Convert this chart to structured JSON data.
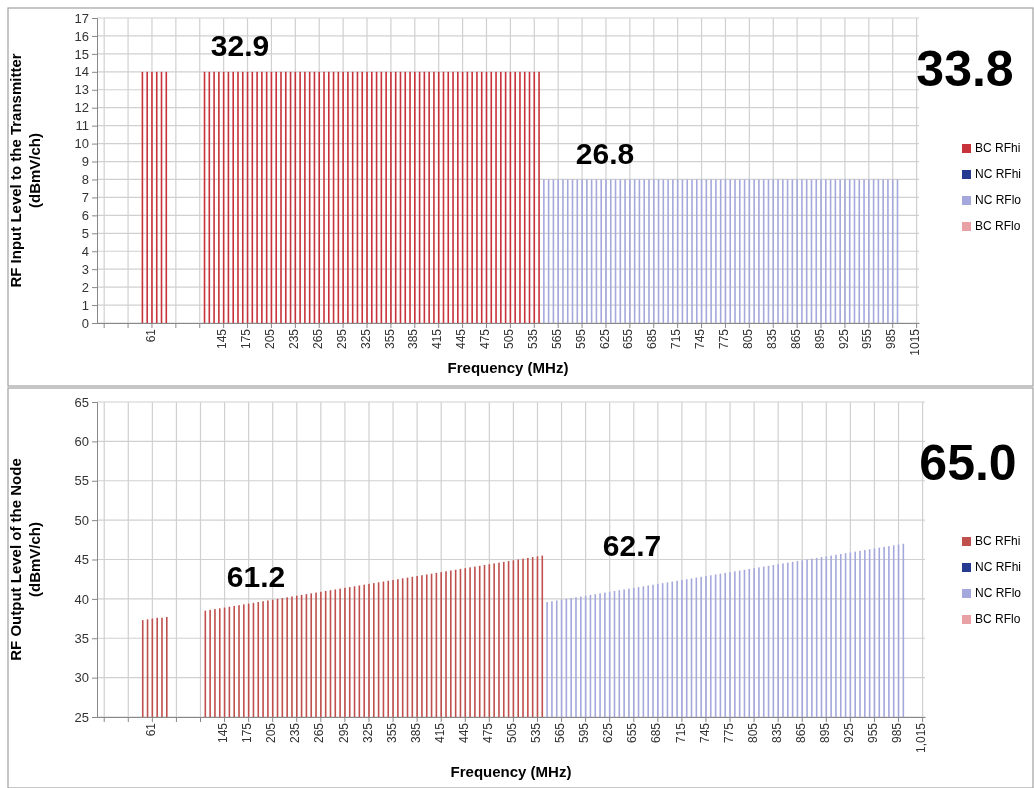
{
  "chart_data": [
    {
      "type": "bar",
      "xlabel": "Frequency (MHz)",
      "ylabel": "RF Input Level to the Transmitter\n(dBmV/ch)",
      "categories": [
        null,
        null,
        null,
        null,
        null,
        null,
        null,
        null,
        null,
        null,
        null,
        "61",
        null,
        null,
        null,
        null,
        null,
        null,
        null,
        null,
        null,
        null,
        null,
        null,
        null,
        null,
        "145",
        null,
        null,
        null,
        null,
        "175",
        null,
        null,
        null,
        null,
        "205",
        null,
        null,
        null,
        null,
        "235",
        null,
        null,
        null,
        null,
        "265",
        null,
        null,
        null,
        null,
        "295",
        null,
        null,
        null,
        null,
        "325",
        null,
        null,
        null,
        null,
        "355",
        null,
        null,
        null,
        null,
        "385",
        null,
        null,
        null,
        null,
        "415",
        null,
        null,
        null,
        null,
        "445",
        null,
        null,
        null,
        null,
        "475",
        null,
        null,
        null,
        null,
        "505",
        null,
        null,
        null,
        null,
        "535",
        null,
        null,
        null,
        null,
        "565",
        null,
        null,
        null,
        null,
        "595",
        null,
        null,
        null,
        null,
        "625",
        null,
        null,
        null,
        null,
        "655",
        null,
        null,
        null,
        null,
        "685",
        null,
        null,
        null,
        null,
        "715",
        null,
        null,
        null,
        null,
        "745",
        null,
        null,
        null,
        null,
        "775",
        null,
        null,
        null,
        null,
        "805",
        null,
        null,
        null,
        null,
        "835",
        null,
        null,
        null,
        null,
        "865",
        null,
        null,
        null,
        null,
        "895",
        null,
        null,
        null,
        null,
        "925",
        null,
        null,
        null,
        null,
        "955",
        null,
        null,
        null,
        null,
        "985",
        null,
        null,
        null,
        null,
        "1015"
      ],
      "ylim": [
        0,
        17
      ],
      "yticks": [
        0,
        1,
        2,
        3,
        4,
        5,
        6,
        7,
        8,
        9,
        10,
        11,
        12,
        13,
        14,
        15,
        16,
        17
      ],
      "grid": true,
      "legend": "right",
      "series": [
        {
          "name": "BC RFhi",
          "color": "#c8323a",
          "values": [
            null,
            null,
            null,
            null,
            null,
            null,
            null,
            null,
            null,
            14,
            14,
            14,
            14,
            14,
            14,
            null,
            null,
            null,
            null,
            null,
            null,
            null,
            14,
            14,
            14,
            14,
            14,
            14,
            14,
            14,
            14,
            14,
            14,
            14,
            14,
            14,
            14,
            14,
            14,
            14,
            14,
            14,
            14,
            14,
            14,
            14,
            14,
            14,
            14,
            14,
            14,
            14,
            14,
            14,
            14,
            14,
            14,
            14,
            14,
            14,
            14,
            14,
            14,
            14,
            14,
            14,
            14,
            14,
            14,
            14,
            14,
            14,
            14,
            14,
            14,
            14,
            14,
            14,
            14,
            14,
            14,
            14,
            14,
            14,
            14,
            14,
            14,
            14,
            14,
            14,
            14,
            14,
            14,
            null,
            null,
            null,
            null,
            null,
            null,
            null,
            null,
            null,
            null,
            null,
            null,
            null,
            null,
            null,
            null,
            null,
            null,
            null,
            null,
            null,
            null,
            null,
            null,
            null,
            null,
            null,
            null,
            null,
            null,
            null,
            null,
            null,
            null,
            null,
            null,
            null,
            null,
            null,
            null,
            null,
            null,
            null,
            null,
            null,
            null,
            null,
            null,
            null,
            null,
            null,
            null,
            null,
            null,
            null,
            null,
            null,
            null,
            null,
            null,
            null,
            null,
            null,
            null,
            null,
            null,
            null,
            null,
            null,
            null,
            null,
            null,
            null,
            null,
            null,
            null,
            null,
            null,
            null
          ]
        },
        {
          "name": "NC RFhi",
          "color": "#253b8f",
          "values": [
            null,
            null,
            null,
            null,
            null,
            null,
            null,
            null,
            null,
            null,
            null,
            null,
            null,
            null,
            null,
            null,
            null,
            null,
            null,
            null,
            null,
            null,
            null,
            null,
            null,
            null,
            null,
            null,
            null,
            null,
            null,
            null,
            null,
            null,
            null,
            null,
            null,
            null,
            null,
            null,
            null,
            null,
            null,
            null,
            null,
            null,
            null,
            null,
            null,
            null,
            null,
            null,
            null,
            null,
            null,
            null,
            null,
            null,
            null,
            null,
            null,
            null,
            null,
            null,
            null,
            null,
            null,
            null,
            null,
            null,
            null,
            null,
            null,
            null,
            null,
            null,
            null,
            null,
            null,
            null,
            null,
            null,
            null,
            null,
            null,
            null,
            null,
            null,
            null,
            null,
            null,
            null,
            null,
            null,
            null,
            null,
            null,
            null,
            null,
            null,
            null,
            null,
            null,
            null,
            null,
            null,
            null,
            null,
            null,
            null,
            null,
            null,
            null,
            null,
            null,
            null,
            null,
            null,
            null,
            null,
            null,
            null,
            null,
            null,
            null,
            null,
            null,
            null,
            null,
            null,
            null,
            null,
            null,
            null,
            null,
            null,
            null,
            null,
            null,
            null,
            null,
            null,
            null,
            null,
            null,
            null,
            null,
            null,
            null,
            null,
            null,
            null,
            null,
            null,
            null,
            null,
            null,
            null,
            null,
            null,
            null,
            null,
            null,
            null,
            null,
            null,
            null,
            null,
            null,
            null,
            null,
            null
          ]
        },
        {
          "name": "NC RFlo",
          "color": "#a4a8dc",
          "values": [
            null,
            null,
            null,
            null,
            null,
            null,
            null,
            null,
            null,
            null,
            null,
            null,
            null,
            null,
            null,
            null,
            null,
            null,
            null,
            null,
            null,
            null,
            null,
            null,
            null,
            null,
            null,
            null,
            null,
            null,
            null,
            null,
            null,
            null,
            null,
            null,
            null,
            null,
            null,
            null,
            null,
            null,
            null,
            null,
            null,
            null,
            null,
            null,
            null,
            null,
            null,
            null,
            null,
            null,
            null,
            null,
            null,
            null,
            null,
            null,
            null,
            null,
            null,
            null,
            null,
            null,
            null,
            null,
            null,
            null,
            null,
            null,
            null,
            null,
            null,
            null,
            null,
            null,
            null,
            null,
            null,
            null,
            null,
            null,
            null,
            null,
            null,
            null,
            null,
            null,
            null,
            null,
            null,
            8,
            8,
            8,
            8,
            8,
            8,
            8,
            8,
            8,
            8,
            8,
            8,
            8,
            8,
            8,
            8,
            8,
            8,
            8,
            8,
            8,
            8,
            8,
            8,
            8,
            8,
            8,
            8,
            8,
            8,
            8,
            8,
            8,
            8,
            8,
            8,
            8,
            8,
            8,
            8,
            8,
            8,
            8,
            8,
            8,
            8,
            8,
            8,
            8,
            8,
            8,
            8,
            8,
            8,
            8,
            8,
            8,
            8,
            8,
            8,
            8,
            8,
            8,
            8,
            8,
            8,
            8,
            8,
            8,
            8,
            8,
            8,
            8,
            8,
            8,
            null,
            null,
            null,
            null
          ]
        },
        {
          "name": "BC RFlo",
          "color": "#e8a2a6",
          "values": [
            null,
            null,
            null,
            null,
            null,
            null,
            null,
            null,
            null,
            null,
            null,
            null,
            null,
            null,
            null,
            null,
            null,
            null,
            null,
            null,
            null,
            null,
            null,
            null,
            null,
            null,
            null,
            null,
            null,
            null,
            null,
            null,
            null,
            null,
            null,
            null,
            null,
            null,
            null,
            null,
            null,
            null,
            null,
            null,
            null,
            null,
            null,
            null,
            null,
            null,
            null,
            null,
            null,
            null,
            null,
            null,
            null,
            null,
            null,
            null,
            null,
            null,
            null,
            null,
            null,
            null,
            null,
            null,
            null,
            null,
            null,
            null,
            null,
            null,
            null,
            null,
            null,
            null,
            null,
            null,
            null,
            null,
            null,
            null,
            null,
            null,
            null,
            null,
            null,
            null,
            null,
            null,
            null,
            null,
            null,
            null,
            null,
            null,
            null,
            null,
            null,
            null,
            null,
            null,
            null,
            null,
            null,
            null,
            null,
            null,
            null,
            null,
            null,
            null,
            null,
            null,
            null,
            null,
            null,
            null,
            null,
            null,
            null,
            null,
            null,
            null,
            null,
            null,
            null,
            null,
            null,
            null,
            null,
            null,
            null,
            null,
            null,
            null,
            null,
            null,
            null,
            null,
            null,
            null,
            null,
            null,
            null,
            null,
            null,
            null,
            null,
            null,
            null,
            null,
            null,
            null,
            null,
            null,
            null,
            null,
            null,
            null,
            null,
            null,
            null,
            null,
            null,
            null,
            null,
            null,
            null,
            null
          ]
        }
      ],
      "annotations": [
        "32.9",
        "26.8",
        "33.8"
      ]
    },
    {
      "type": "bar",
      "xlabel": "Frequency (MHz)",
      "ylabel": "RF Output Level of the Node\n(dBmV/ch)",
      "categories": [
        null,
        null,
        null,
        null,
        null,
        null,
        null,
        null,
        null,
        null,
        null,
        "61",
        null,
        null,
        null,
        null,
        null,
        null,
        null,
        null,
        null,
        null,
        null,
        null,
        null,
        null,
        "145",
        null,
        null,
        null,
        null,
        "175",
        null,
        null,
        null,
        null,
        "205",
        null,
        null,
        null,
        null,
        "235",
        null,
        null,
        null,
        null,
        "265",
        null,
        null,
        null,
        null,
        "295",
        null,
        null,
        null,
        null,
        "325",
        null,
        null,
        null,
        null,
        "355",
        null,
        null,
        null,
        null,
        "385",
        null,
        null,
        null,
        null,
        "415",
        null,
        null,
        null,
        null,
        "445",
        null,
        null,
        null,
        null,
        "475",
        null,
        null,
        null,
        null,
        "505",
        null,
        null,
        null,
        null,
        "535",
        null,
        null,
        null,
        null,
        "565",
        null,
        null,
        null,
        null,
        "595",
        null,
        null,
        null,
        null,
        "625",
        null,
        null,
        null,
        null,
        "655",
        null,
        null,
        null,
        null,
        "685",
        null,
        null,
        null,
        null,
        "715",
        null,
        null,
        null,
        null,
        "745",
        null,
        null,
        null,
        null,
        "775",
        null,
        null,
        null,
        null,
        "805",
        null,
        null,
        null,
        null,
        "835",
        null,
        null,
        null,
        null,
        "865",
        null,
        null,
        null,
        null,
        "895",
        null,
        null,
        null,
        null,
        "925",
        null,
        null,
        null,
        null,
        "955",
        null,
        null,
        null,
        null,
        "985",
        null,
        null,
        null,
        null,
        "1,015"
      ],
      "ylim": [
        25,
        65
      ],
      "yticks": [
        25,
        30,
        35,
        40,
        45,
        50,
        55,
        60,
        65
      ],
      "grid": true,
      "legend": "right",
      "series": [
        {
          "name": "BC RFhi",
          "color": "#c0504d",
          "values": [
            null,
            null,
            null,
            null,
            null,
            null,
            null,
            null,
            null,
            37.3,
            37.4,
            37.5,
            37.6,
            37.6,
            37.7,
            null,
            null,
            null,
            null,
            null,
            null,
            null,
            38.5,
            38.6,
            38.7,
            38.8,
            38.9,
            39.0,
            39.1,
            39.2,
            39.3,
            39.4,
            39.5,
            39.6,
            39.7,
            39.8,
            39.9,
            40.0,
            40.1,
            40.2,
            40.3,
            40.4,
            40.5,
            40.6,
            40.7,
            40.8,
            40.9,
            41.0,
            41.1,
            41.2,
            41.3,
            41.4,
            41.5,
            41.6,
            41.7,
            41.8,
            41.9,
            42.0,
            42.1,
            42.2,
            42.3,
            42.4,
            42.5,
            42.6,
            42.7,
            42.8,
            42.9,
            43.0,
            43.1,
            43.2,
            43.3,
            43.4,
            43.5,
            43.6,
            43.7,
            43.8,
            43.9,
            44.0,
            44.1,
            44.2,
            44.3,
            44.4,
            44.5,
            44.6,
            44.7,
            44.8,
            44.9,
            45.0,
            45.1,
            45.2,
            45.3,
            45.4,
            45.5,
            null,
            null,
            null,
            null,
            null,
            null,
            null,
            null,
            null,
            null,
            null,
            null,
            null,
            null,
            null,
            null,
            null,
            null,
            null,
            null,
            null,
            null,
            null,
            null,
            null,
            null,
            null,
            null,
            null,
            null,
            null,
            null,
            null,
            null,
            null,
            null,
            null,
            null,
            null,
            null,
            null,
            null,
            null,
            null,
            null,
            null,
            null,
            null,
            null,
            null,
            null,
            null,
            null,
            null,
            null,
            null,
            null,
            null,
            null,
            null,
            null,
            null,
            null,
            null,
            null,
            null,
            null,
            null,
            null,
            null,
            null,
            null,
            null,
            null,
            null,
            null,
            null,
            null,
            null
          ]
        },
        {
          "name": "NC RFhi",
          "color": "#253b8f",
          "values": [
            null,
            null,
            null,
            null,
            null,
            null,
            null,
            null,
            null,
            null,
            null,
            null,
            null,
            null,
            null,
            null,
            null,
            null,
            null,
            null,
            null,
            null,
            null,
            null,
            null,
            null,
            null,
            null,
            null,
            null,
            null,
            null,
            null,
            null,
            null,
            null,
            null,
            null,
            null,
            null,
            null,
            null,
            null,
            null,
            null,
            null,
            null,
            null,
            null,
            null,
            null,
            null,
            null,
            null,
            null,
            null,
            null,
            null,
            null,
            null,
            null,
            null,
            null,
            null,
            null,
            null,
            null,
            null,
            null,
            null,
            null,
            null,
            null,
            null,
            null,
            null,
            null,
            null,
            null,
            null,
            null,
            null,
            null,
            null,
            null,
            null,
            null,
            null,
            null,
            null,
            null,
            null,
            null,
            null,
            null,
            null,
            null,
            null,
            null,
            null,
            null,
            null,
            null,
            null,
            null,
            null,
            null,
            null,
            null,
            null,
            null,
            null,
            null,
            null,
            null,
            null,
            null,
            null,
            null,
            null,
            null,
            null,
            null,
            null,
            null,
            null,
            null,
            null,
            null,
            null,
            null,
            null,
            null,
            null,
            null,
            null,
            null,
            null,
            null,
            null,
            null,
            null,
            null,
            null,
            null,
            null,
            null,
            null,
            null,
            null,
            null,
            null,
            null,
            null,
            null,
            null,
            null,
            null,
            null,
            null,
            null,
            null,
            null,
            null,
            null,
            null,
            null,
            null,
            null,
            null,
            null,
            null
          ]
        },
        {
          "name": "NC RFlo",
          "color": "#a4a8dc",
          "values": [
            null,
            null,
            null,
            null,
            null,
            null,
            null,
            null,
            null,
            null,
            null,
            null,
            null,
            null,
            null,
            null,
            null,
            null,
            null,
            null,
            null,
            null,
            null,
            null,
            null,
            null,
            null,
            null,
            null,
            null,
            null,
            null,
            null,
            null,
            null,
            null,
            null,
            null,
            null,
            null,
            null,
            null,
            null,
            null,
            null,
            null,
            null,
            null,
            null,
            null,
            null,
            null,
            null,
            null,
            null,
            null,
            null,
            null,
            null,
            null,
            null,
            null,
            null,
            null,
            null,
            null,
            null,
            null,
            null,
            null,
            null,
            null,
            null,
            null,
            null,
            null,
            null,
            null,
            null,
            null,
            null,
            null,
            null,
            null,
            null,
            null,
            null,
            null,
            null,
            null,
            null,
            null,
            null,
            39.6,
            39.7,
            39.8,
            39.9,
            40.0,
            40.1,
            40.2,
            40.3,
            40.4,
            40.5,
            40.6,
            40.7,
            40.8,
            40.9,
            41.0,
            41.1,
            41.2,
            41.3,
            41.4,
            41.5,
            41.6,
            41.7,
            41.8,
            41.9,
            42.0,
            42.1,
            42.2,
            42.3,
            42.4,
            42.5,
            42.6,
            42.7,
            42.8,
            42.9,
            43.0,
            43.1,
            43.2,
            43.3,
            43.4,
            43.5,
            43.6,
            43.7,
            43.8,
            43.9,
            44.0,
            44.1,
            44.2,
            44.3,
            44.4,
            44.5,
            44.6,
            44.7,
            44.8,
            44.9,
            45.0,
            45.1,
            45.2,
            45.3,
            45.4,
            45.5,
            45.6,
            45.7,
            45.8,
            45.9,
            46.0,
            46.1,
            46.2,
            46.3,
            46.4,
            46.5,
            46.6,
            46.7,
            46.8,
            46.9,
            47.0,
            null,
            null,
            null,
            null
          ]
        },
        {
          "name": "BC RFlo",
          "color": "#e8a2a6",
          "values": [
            null,
            null,
            null,
            null,
            null,
            null,
            null,
            null,
            null,
            null,
            null,
            null,
            null,
            null,
            null,
            null,
            null,
            null,
            null,
            null,
            null,
            null,
            null,
            null,
            null,
            null,
            null,
            null,
            null,
            null,
            null,
            null,
            null,
            null,
            null,
            null,
            null,
            null,
            null,
            null,
            null,
            null,
            null,
            null,
            null,
            null,
            null,
            null,
            null,
            null,
            null,
            null,
            null,
            null,
            null,
            null,
            null,
            null,
            null,
            null,
            null,
            null,
            null,
            null,
            null,
            null,
            null,
            null,
            null,
            null,
            null,
            null,
            null,
            null,
            null,
            null,
            null,
            null,
            null,
            null,
            null,
            null,
            null,
            null,
            null,
            null,
            null,
            null,
            null,
            null,
            null,
            null,
            null,
            null,
            null,
            null,
            null,
            null,
            null,
            null,
            null,
            null,
            null,
            null,
            null,
            null,
            null,
            null,
            null,
            null,
            null,
            null,
            null,
            null,
            null,
            null,
            null,
            null,
            null,
            null,
            null,
            null,
            null,
            null,
            null,
            null,
            null,
            null,
            null,
            null,
            null,
            null,
            null,
            null,
            null,
            null,
            null,
            null,
            null,
            null,
            null,
            null,
            null,
            null,
            null,
            null,
            null,
            null,
            null,
            null,
            null,
            null,
            null,
            null,
            null,
            null,
            null,
            null,
            null,
            null,
            null,
            null,
            null,
            null,
            null,
            null,
            null,
            null,
            null,
            null,
            null,
            null
          ]
        }
      ],
      "annotations": [
        "61.2",
        "62.7",
        "65.0"
      ]
    }
  ]
}
